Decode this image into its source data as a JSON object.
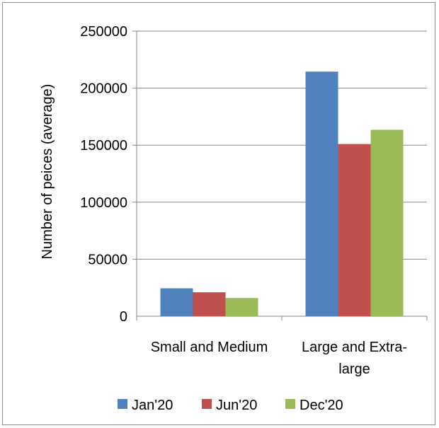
{
  "chart_data": {
    "type": "bar",
    "categories": [
      [
        "Small and Medium"
      ],
      [
        "Large and Extra-",
        "large"
      ]
    ],
    "series": [
      {
        "name": "Jan'20",
        "values": [
          24500,
          214500
        ],
        "color": "#4f81bd"
      },
      {
        "name": "Jun'20",
        "values": [
          21000,
          151000
        ],
        "color": "#c0504d"
      },
      {
        "name": "Dec'20",
        "values": [
          16000,
          163500
        ],
        "color": "#9bbb59"
      }
    ],
    "ylabel": "Number of peices (average)",
    "xlabel": "",
    "ylim": [
      0,
      250000
    ],
    "yticks": [
      "0",
      "50000",
      "100000",
      "150000",
      "200000",
      "250000"
    ],
    "grid": true,
    "legend": "bottom"
  }
}
